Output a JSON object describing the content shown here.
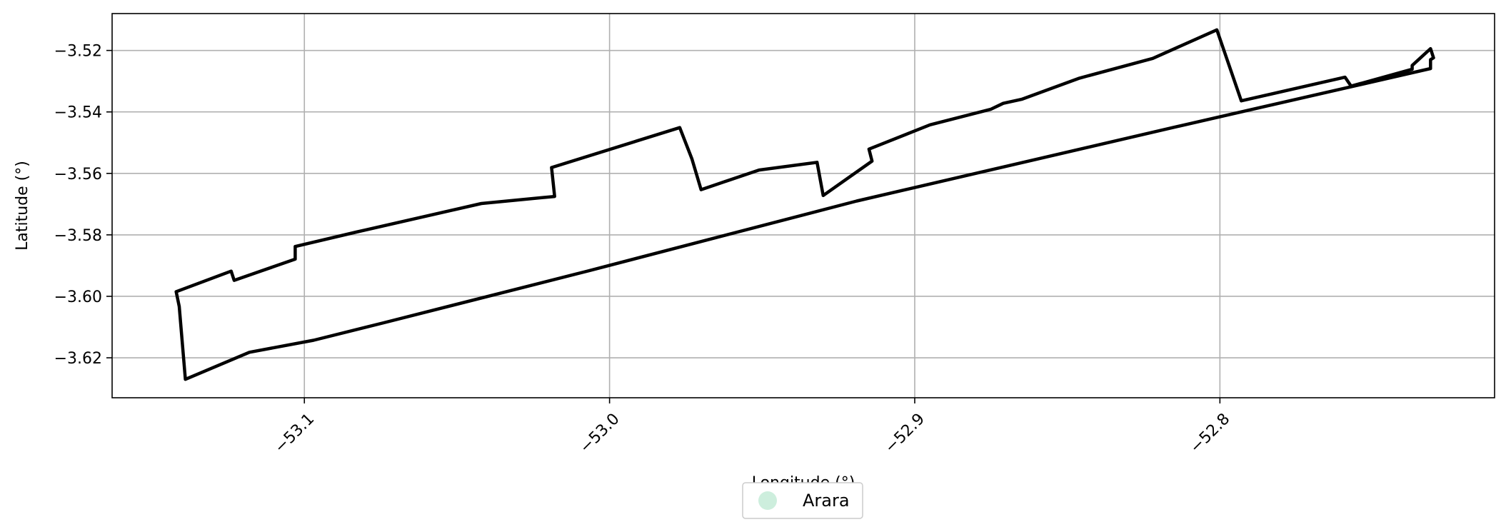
{
  "chart_data": {
    "type": "line",
    "title": "",
    "xlabel": "Longitude (°)",
    "ylabel": "Latitude (°)",
    "xlim": [
      -53.163,
      -52.71
    ],
    "ylim": [
      -3.633,
      -3.508
    ],
    "xticks": [
      {
        "value": -53.1,
        "label": "−53.1"
      },
      {
        "value": -53.0,
        "label": "−53.0"
      },
      {
        "value": -52.9,
        "label": "−52.9"
      },
      {
        "value": -52.8,
        "label": "−52.8"
      }
    ],
    "yticks": [
      {
        "value": -3.52,
        "label": "−3.52"
      },
      {
        "value": -3.54,
        "label": "−3.54"
      },
      {
        "value": -3.56,
        "label": "−3.56"
      },
      {
        "value": -3.58,
        "label": "−3.58"
      },
      {
        "value": -3.6,
        "label": "−3.60"
      },
      {
        "value": -3.62,
        "label": "−3.62"
      }
    ],
    "grid": true,
    "legend_position": "bottom-center",
    "series": [
      {
        "name": "Arara",
        "color": "#000000",
        "marker_color": "#cdeedd",
        "x": [
          -53.142,
          -53.124,
          -53.123,
          -53.103,
          -53.103,
          -53.083,
          -53.06,
          -53.042,
          -53.018,
          -53.019,
          -52.977,
          -52.973,
          -52.97,
          -52.951,
          -52.932,
          -52.93,
          -52.914,
          -52.915,
          -52.895,
          -52.875,
          -52.871,
          -52.865,
          -52.846,
          -52.822,
          -52.801,
          -52.793,
          -52.759,
          -52.757,
          -52.737,
          -52.737,
          -52.731,
          -52.73,
          -52.731,
          -52.731,
          -52.815,
          -52.919,
          -53.008,
          -53.074,
          -53.097,
          -53.118,
          -53.139,
          -53.141,
          -53.142
        ],
        "y": [
          -3.5985,
          -3.5918,
          -3.5948,
          -3.5879,
          -3.5838,
          -3.5791,
          -3.5739,
          -3.5698,
          -3.5675,
          -3.5581,
          -3.5451,
          -3.5553,
          -3.5653,
          -3.5589,
          -3.5564,
          -3.5672,
          -3.556,
          -3.5521,
          -3.5442,
          -3.5391,
          -3.5372,
          -3.5359,
          -3.529,
          -3.5226,
          -3.5133,
          -3.5364,
          -3.5287,
          -3.5316,
          -3.5261,
          -3.5249,
          -3.5194,
          -3.5224,
          -3.523,
          -3.5259,
          -3.545,
          -3.569,
          -3.592,
          -3.6086,
          -3.6143,
          -3.6182,
          -3.627,
          -3.6033,
          -3.5985
        ]
      }
    ]
  }
}
